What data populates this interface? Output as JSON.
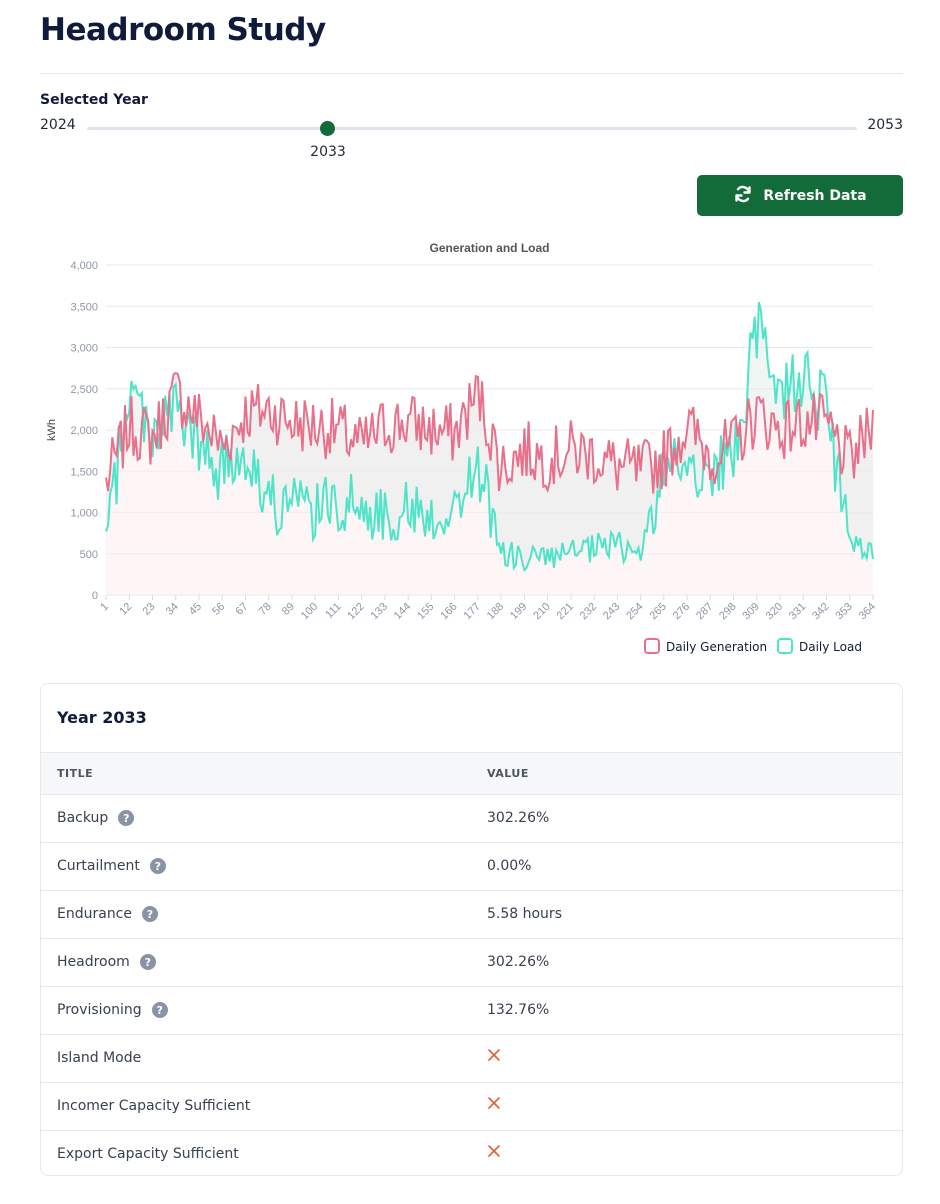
{
  "header": {
    "title": "Headroom Study"
  },
  "year_selector": {
    "label": "Selected Year",
    "min": "2024",
    "max": "2053",
    "value": "2033"
  },
  "refresh_button": {
    "label": "Refresh Data",
    "color": "#146b3a"
  },
  "chart_data": {
    "type": "line",
    "title": "Generation and Load",
    "ylabel": "kWh",
    "xlabel": "",
    "ylim": [
      0,
      4000
    ],
    "y_ticks": [
      "0",
      "500",
      "1,000",
      "1,500",
      "2,000",
      "2,500",
      "3,000",
      "3,500",
      "4,000"
    ],
    "x_ticks": [
      "1",
      "12",
      "23",
      "34",
      "45",
      "56",
      "67",
      "78",
      "89",
      "100",
      "111",
      "122",
      "133",
      "144",
      "155",
      "166",
      "177",
      "188",
      "199",
      "210",
      "221",
      "232",
      "243",
      "254",
      "265",
      "276",
      "287",
      "298",
      "309",
      "320",
      "331",
      "342",
      "353",
      "364"
    ],
    "grid": true,
    "legend_position": "bottom-right",
    "series": [
      {
        "name": "Daily Generation",
        "color": "#e8708b",
        "x": [
          1,
          12,
          23,
          34,
          45,
          56,
          67,
          78,
          89,
          100,
          111,
          122,
          133,
          144,
          155,
          166,
          177,
          188,
          199,
          210,
          221,
          232,
          243,
          254,
          265,
          276,
          287,
          298,
          309,
          320,
          331,
          342,
          353,
          364
        ],
        "values": [
          1350,
          2050,
          1900,
          2450,
          2150,
          1800,
          2200,
          2250,
          2100,
          2050,
          2000,
          1800,
          2050,
          2100,
          2000,
          1950,
          2450,
          1550,
          1750,
          1650,
          1750,
          1700,
          1550,
          1500,
          1650,
          2050,
          1700,
          1800,
          2200,
          2000,
          2100,
          2050,
          1600,
          2050
        ]
      },
      {
        "name": "Daily Load",
        "color": "#4ee4c8",
        "x": [
          1,
          12,
          23,
          34,
          45,
          56,
          67,
          78,
          89,
          100,
          111,
          122,
          133,
          144,
          155,
          166,
          177,
          188,
          199,
          210,
          221,
          232,
          243,
          254,
          265,
          276,
          287,
          298,
          309,
          320,
          331,
          342,
          353,
          364
        ],
        "values": [
          650,
          2500,
          2000,
          2250,
          1750,
          1500,
          1800,
          1100,
          1100,
          1000,
          1150,
          1050,
          950,
          1050,
          950,
          1000,
          1600,
          500,
          450,
          450,
          500,
          550,
          600,
          500,
          1450,
          1650,
          1450,
          1650,
          3200,
          2500,
          2700,
          2200,
          650,
          450
        ]
      }
    ]
  },
  "summary": {
    "title": "Year 2033",
    "columns": {
      "title": "TITLE",
      "value": "VALUE"
    },
    "rows": [
      {
        "title": "Backup",
        "value": "302.26%",
        "help": true
      },
      {
        "title": "Curtailment",
        "value": "0.00%",
        "help": true
      },
      {
        "title": "Endurance",
        "value": "5.58 hours",
        "help": true
      },
      {
        "title": "Headroom",
        "value": "302.26%",
        "help": true
      },
      {
        "title": "Provisioning",
        "value": "132.76%",
        "help": true
      },
      {
        "title": "Island Mode",
        "value": false,
        "help": false
      },
      {
        "title": "Incomer Capacity Sufficient",
        "value": false,
        "help": false
      },
      {
        "title": "Export Capacity Sufficient",
        "value": false,
        "help": false
      }
    ],
    "false_icon": "x-icon",
    "false_icon_color": "#e25c3c"
  }
}
